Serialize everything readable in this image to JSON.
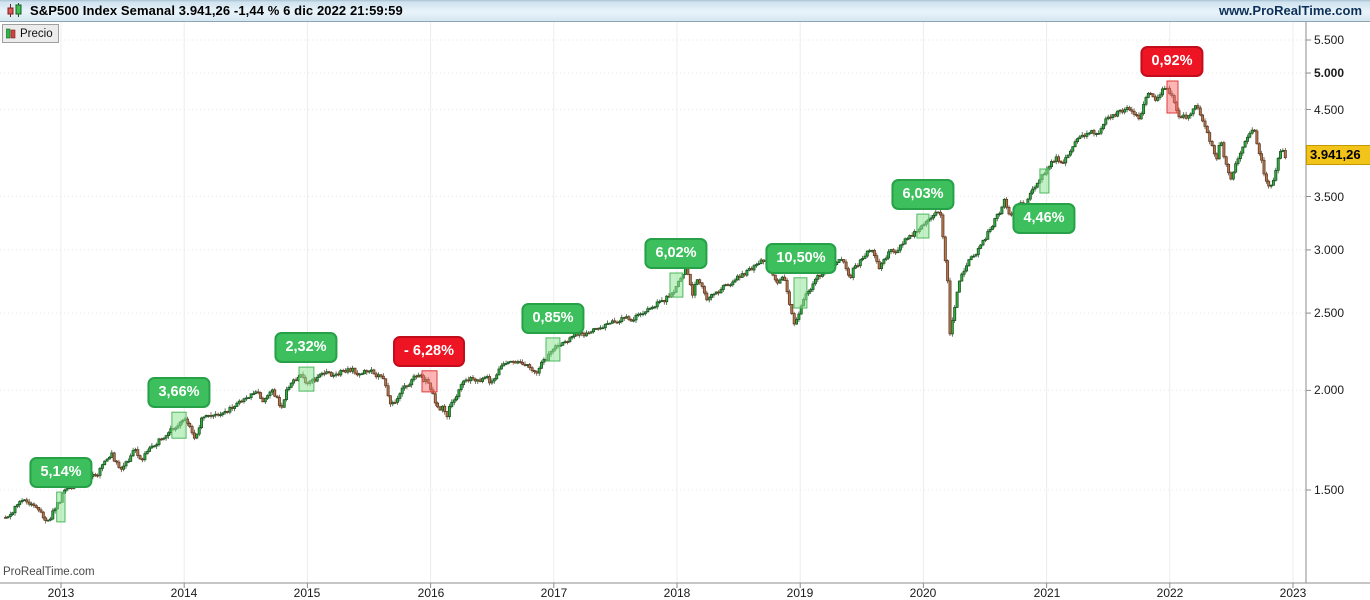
{
  "title_bar": {
    "title": "S&P500 Index Semanal 3.941,26 -1,44 % 6 dic 2022 21:59:59",
    "website": "www.ProRealTime.com"
  },
  "legend": {
    "label": "Precio"
  },
  "watermark": "ProRealTime.com",
  "price_tag": {
    "label": "3.941,26",
    "bg_color": "#F2C319"
  },
  "colors": {
    "up_candle": "#2FAE3F",
    "up_stroke": "#17491C",
    "down_candle": "#B5764F",
    "down_stroke": "#56331C",
    "badge_up_bg": "#3CBF5C",
    "badge_up_border": "#27a148",
    "badge_down_bg": "#ED1423",
    "badge_down_border": "#c20d1c",
    "zone_up_fill": "rgba(144,230,150,0.55)",
    "zone_up_stroke": "#4DB85E",
    "zone_down_fill": "rgba(250,110,110,0.50)",
    "zone_down_stroke": "#E03A3A",
    "grid_v": "#ececec",
    "grid_h": "#e7e7e7",
    "axis": "#8c8c8c"
  },
  "chart_data": {
    "type": "candlestick",
    "symbol": "S&P500 Index",
    "timeframe": "Semanal",
    "last_price": 3941.26,
    "change_pct": "-1,44 %",
    "last_update": "6 dic 2022 21:59:59",
    "y_axis": {
      "scale": "log",
      "side": "right",
      "ticks": [
        5500,
        5000,
        4500,
        3500,
        3000,
        2500,
        2000,
        1500
      ],
      "bold_tick": 5000
    },
    "x_axis": {
      "ticks": [
        2013,
        2014,
        2015,
        2016,
        2017,
        2018,
        2019,
        2020,
        2021,
        2022,
        2023
      ]
    },
    "events": [
      {
        "label": "5,14%",
        "color": "green",
        "year_start": 2012.965,
        "year_end": 2013.032,
        "price_low": 1368,
        "price_high": 1491,
        "label_side": "above"
      },
      {
        "label": "3,66%",
        "color": "green",
        "year_start": 2013.9,
        "year_end": 2014.015,
        "price_low": 1742,
        "price_high": 1878,
        "label_side": "above"
      },
      {
        "label": "2,32%",
        "color": "green",
        "year_start": 2014.932,
        "year_end": 2015.053,
        "price_low": 1996,
        "price_high": 2139,
        "label_side": "above"
      },
      {
        "label": "- 6,28%",
        "color": "red",
        "year_start": 2015.93,
        "year_end": 2016.052,
        "price_low": 1991,
        "price_high": 2116,
        "label_side": "above"
      },
      {
        "label": "0,85%",
        "color": "green",
        "year_start": 2016.937,
        "year_end": 2017.05,
        "price_low": 2177,
        "price_high": 2327,
        "label_side": "above"
      },
      {
        "label": "6,02%",
        "color": "green",
        "year_start": 2017.943,
        "year_end": 2018.048,
        "price_low": 2618,
        "price_high": 2807,
        "label_side": "above"
      },
      {
        "label": "10,50%",
        "color": "green",
        "year_start": 2018.95,
        "year_end": 2019.055,
        "price_low": 2537,
        "price_high": 2768,
        "label_side": "above"
      },
      {
        "label": "6,03%",
        "color": "green",
        "year_start": 2019.947,
        "year_end": 2020.044,
        "price_low": 3105,
        "price_high": 3327,
        "label_side": "above"
      },
      {
        "label": "4,46%",
        "color": "green",
        "year_start": 2020.946,
        "year_end": 2021.019,
        "price_low": 3536,
        "price_high": 3790,
        "label_side": "below"
      },
      {
        "label": "0,92%",
        "color": "red",
        "year_start": 2021.977,
        "year_end": 2022.066,
        "price_low": 4455,
        "price_high": 4886,
        "label_side": "above"
      }
    ],
    "price_path_anchors": [
      [
        2012.55,
        1385
      ],
      [
        2012.62,
        1418
      ],
      [
        2012.7,
        1460
      ],
      [
        2012.78,
        1433
      ],
      [
        2012.84,
        1410
      ],
      [
        2012.88,
        1360
      ],
      [
        2012.95,
        1418
      ],
      [
        2013.0,
        1466
      ],
      [
        2013.03,
        1502
      ],
      [
        2013.1,
        1518
      ],
      [
        2013.16,
        1552
      ],
      [
        2013.22,
        1556
      ],
      [
        2013.3,
        1569
      ],
      [
        2013.36,
        1633
      ],
      [
        2013.41,
        1667
      ],
      [
        2013.47,
        1592
      ],
      [
        2013.54,
        1632
      ],
      [
        2013.6,
        1687
      ],
      [
        2013.65,
        1632
      ],
      [
        2013.7,
        1685
      ],
      [
        2013.76,
        1703
      ],
      [
        2013.82,
        1744
      ],
      [
        2013.88,
        1775
      ],
      [
        2013.95,
        1812
      ],
      [
        2014.0,
        1842
      ],
      [
        2014.04,
        1797
      ],
      [
        2014.09,
        1742
      ],
      [
        2014.14,
        1839
      ],
      [
        2014.19,
        1859
      ],
      [
        2014.26,
        1873
      ],
      [
        2014.32,
        1865
      ],
      [
        2014.38,
        1901
      ],
      [
        2014.44,
        1924
      ],
      [
        2014.5,
        1963
      ],
      [
        2014.55,
        1978
      ],
      [
        2014.6,
        1988
      ],
      [
        2014.64,
        1931
      ],
      [
        2014.7,
        2002
      ],
      [
        2014.75,
        1965
      ],
      [
        2014.79,
        1887
      ],
      [
        2014.84,
        2018
      ],
      [
        2014.89,
        2064
      ],
      [
        2014.95,
        2089
      ],
      [
        2014.98,
        2059
      ],
      [
        2015.02,
        2045
      ],
      [
        2015.06,
        2064
      ],
      [
        2015.1,
        2097
      ],
      [
        2015.16,
        2110
      ],
      [
        2015.21,
        2080
      ],
      [
        2015.26,
        2108
      ],
      [
        2015.31,
        2118
      ],
      [
        2015.37,
        2123
      ],
      [
        2015.42,
        2093
      ],
      [
        2015.47,
        2110
      ],
      [
        2015.52,
        2127
      ],
      [
        2015.56,
        2080
      ],
      [
        2015.6,
        2092
      ],
      [
        2015.63,
        2040
      ],
      [
        2015.655,
        1971
      ],
      [
        2015.68,
        1913
      ],
      [
        2015.72,
        1952
      ],
      [
        2015.75,
        1988
      ],
      [
        2015.79,
        2014
      ],
      [
        2015.83,
        2033
      ],
      [
        2015.87,
        2079
      ],
      [
        2015.91,
        2089
      ],
      [
        2015.95,
        2052
      ],
      [
        2015.97,
        2061
      ],
      [
        2016.01,
        1994
      ],
      [
        2016.04,
        1922
      ],
      [
        2016.07,
        1880
      ],
      [
        2016.1,
        1918
      ],
      [
        2016.13,
        1840
      ],
      [
        2016.16,
        1918
      ],
      [
        2016.2,
        1948
      ],
      [
        2016.24,
        2022
      ],
      [
        2016.28,
        2050
      ],
      [
        2016.32,
        2073
      ],
      [
        2016.36,
        2058
      ],
      [
        2016.41,
        2052
      ],
      [
        2016.45,
        2091
      ],
      [
        2016.48,
        2037
      ],
      [
        2016.52,
        2071
      ],
      [
        2016.56,
        2130
      ],
      [
        2016.6,
        2169
      ],
      [
        2016.64,
        2184
      ],
      [
        2016.69,
        2176
      ],
      [
        2016.74,
        2169
      ],
      [
        2016.78,
        2153
      ],
      [
        2016.82,
        2133
      ],
      [
        2016.86,
        2085
      ],
      [
        2016.9,
        2165
      ],
      [
        2016.94,
        2192
      ],
      [
        2016.98,
        2258
      ],
      [
        2017.02,
        2271
      ],
      [
        2017.07,
        2294
      ],
      [
        2017.12,
        2316
      ],
      [
        2017.17,
        2367
      ],
      [
        2017.22,
        2344
      ],
      [
        2017.27,
        2356
      ],
      [
        2017.32,
        2384
      ],
      [
        2017.37,
        2391
      ],
      [
        2017.42,
        2416
      ],
      [
        2017.47,
        2438
      ],
      [
        2017.52,
        2425
      ],
      [
        2017.57,
        2472
      ],
      [
        2017.62,
        2441
      ],
      [
        2017.67,
        2476
      ],
      [
        2017.72,
        2502
      ],
      [
        2017.77,
        2519
      ],
      [
        2017.82,
        2557
      ],
      [
        2017.87,
        2582
      ],
      [
        2017.91,
        2602
      ],
      [
        2017.95,
        2652
      ],
      [
        2017.98,
        2674
      ],
      [
        2018.02,
        2743
      ],
      [
        2018.05,
        2810
      ],
      [
        2018.07,
        2872
      ],
      [
        2018.1,
        2762
      ],
      [
        2018.12,
        2620
      ],
      [
        2018.15,
        2732
      ],
      [
        2018.18,
        2747
      ],
      [
        2018.21,
        2678
      ],
      [
        2018.24,
        2588
      ],
      [
        2018.27,
        2640
      ],
      [
        2018.31,
        2656
      ],
      [
        2018.35,
        2670
      ],
      [
        2018.39,
        2713
      ],
      [
        2018.43,
        2727
      ],
      [
        2018.47,
        2760
      ],
      [
        2018.51,
        2779
      ],
      [
        2018.55,
        2802
      ],
      [
        2018.59,
        2833
      ],
      [
        2018.63,
        2875
      ],
      [
        2018.67,
        2902
      ],
      [
        2018.71,
        2915
      ],
      [
        2018.74,
        2886
      ],
      [
        2018.78,
        2768
      ],
      [
        2018.81,
        2721
      ],
      [
        2018.84,
        2760
      ],
      [
        2018.87,
        2781
      ],
      [
        2018.9,
        2633
      ],
      [
        2018.93,
        2506
      ],
      [
        2018.955,
        2410
      ],
      [
        2018.98,
        2486
      ],
      [
        2019.02,
        2583
      ],
      [
        2019.06,
        2665
      ],
      [
        2019.1,
        2707
      ],
      [
        2019.14,
        2776
      ],
      [
        2019.18,
        2804
      ],
      [
        2019.22,
        2823
      ],
      [
        2019.26,
        2867
      ],
      [
        2019.3,
        2893
      ],
      [
        2019.34,
        2918
      ],
      [
        2019.37,
        2860
      ],
      [
        2019.4,
        2752
      ],
      [
        2019.44,
        2874
      ],
      [
        2019.48,
        2890
      ],
      [
        2019.52,
        2942
      ],
      [
        2019.55,
        2985
      ],
      [
        2019.58,
        3014
      ],
      [
        2019.61,
        2919
      ],
      [
        2019.64,
        2848
      ],
      [
        2019.68,
        2926
      ],
      [
        2019.72,
        2979
      ],
      [
        2019.75,
        2992
      ],
      [
        2019.79,
        2971
      ],
      [
        2019.83,
        3067
      ],
      [
        2019.87,
        3094
      ],
      [
        2019.91,
        3141
      ],
      [
        2019.95,
        3169
      ],
      [
        2019.98,
        3224
      ],
      [
        2020.02,
        3265
      ],
      [
        2020.05,
        3295
      ],
      [
        2020.08,
        3330
      ],
      [
        2020.11,
        3380
      ],
      [
        2020.14,
        3338
      ],
      [
        2020.17,
        2955
      ],
      [
        2020.2,
        2711
      ],
      [
        2020.22,
        2260
      ],
      [
        2020.24,
        2490
      ],
      [
        2020.27,
        2630
      ],
      [
        2020.3,
        2790
      ],
      [
        2020.34,
        2837
      ],
      [
        2020.38,
        2931
      ],
      [
        2020.42,
        2955
      ],
      [
        2020.46,
        3044
      ],
      [
        2020.5,
        3098
      ],
      [
        2020.54,
        3185
      ],
      [
        2020.58,
        3272
      ],
      [
        2020.62,
        3351
      ],
      [
        2020.66,
        3484
      ],
      [
        2020.69,
        3341
      ],
      [
        2020.72,
        3298
      ],
      [
        2020.76,
        3419
      ],
      [
        2020.79,
        3465
      ],
      [
        2020.82,
        3270
      ],
      [
        2020.85,
        3510
      ],
      [
        2020.89,
        3585
      ],
      [
        2020.92,
        3638
      ],
      [
        2020.95,
        3691
      ],
      [
        2020.98,
        3756
      ],
      [
        2021.02,
        3824
      ],
      [
        2021.05,
        3886
      ],
      [
        2021.09,
        3910
      ],
      [
        2021.12,
        3842
      ],
      [
        2021.16,
        3935
      ],
      [
        2021.2,
        3974
      ],
      [
        2021.24,
        4128
      ],
      [
        2021.28,
        4180
      ],
      [
        2021.32,
        4175
      ],
      [
        2021.36,
        4233
      ],
      [
        2021.4,
        4180
      ],
      [
        2021.44,
        4247
      ],
      [
        2021.48,
        4352
      ],
      [
        2021.52,
        4412
      ],
      [
        2021.56,
        4442
      ],
      [
        2021.6,
        4468
      ],
      [
        2021.64,
        4479
      ],
      [
        2021.68,
        4536
      ],
      [
        2021.71,
        4459
      ],
      [
        2021.75,
        4357
      ],
      [
        2021.79,
        4605
      ],
      [
        2021.83,
        4698
      ],
      [
        2021.86,
        4683
      ],
      [
        2021.89,
        4595
      ],
      [
        2021.92,
        4712
      ],
      [
        2021.95,
        4766
      ],
      [
        2021.98,
        4797
      ],
      [
        2022.02,
        4663
      ],
      [
        2022.05,
        4500
      ],
      [
        2022.08,
        4396
      ],
      [
        2022.11,
        4419
      ],
      [
        2022.14,
        4349
      ],
      [
        2022.17,
        4463
      ],
      [
        2022.2,
        4545
      ],
      [
        2022.23,
        4488
      ],
      [
        2022.26,
        4392
      ],
      [
        2022.29,
        4272
      ],
      [
        2022.32,
        4131
      ],
      [
        2022.35,
        4023
      ],
      [
        2022.38,
        3901
      ],
      [
        2022.41,
        4158
      ],
      [
        2022.44,
        3934
      ],
      [
        2022.47,
        3750
      ],
      [
        2022.5,
        3675
      ],
      [
        2022.53,
        3825
      ],
      [
        2022.56,
        3912
      ],
      [
        2022.59,
        4023
      ],
      [
        2022.62,
        4130
      ],
      [
        2022.65,
        4228
      ],
      [
        2022.68,
        4280
      ],
      [
        2022.71,
        4058
      ],
      [
        2022.74,
        3925
      ],
      [
        2022.77,
        3693
      ],
      [
        2022.8,
        3586
      ],
      [
        2022.83,
        3640
      ],
      [
        2022.86,
        3770
      ],
      [
        2022.89,
        3965
      ],
      [
        2022.91,
        4027
      ],
      [
        2022.93,
        3941
      ]
    ]
  }
}
